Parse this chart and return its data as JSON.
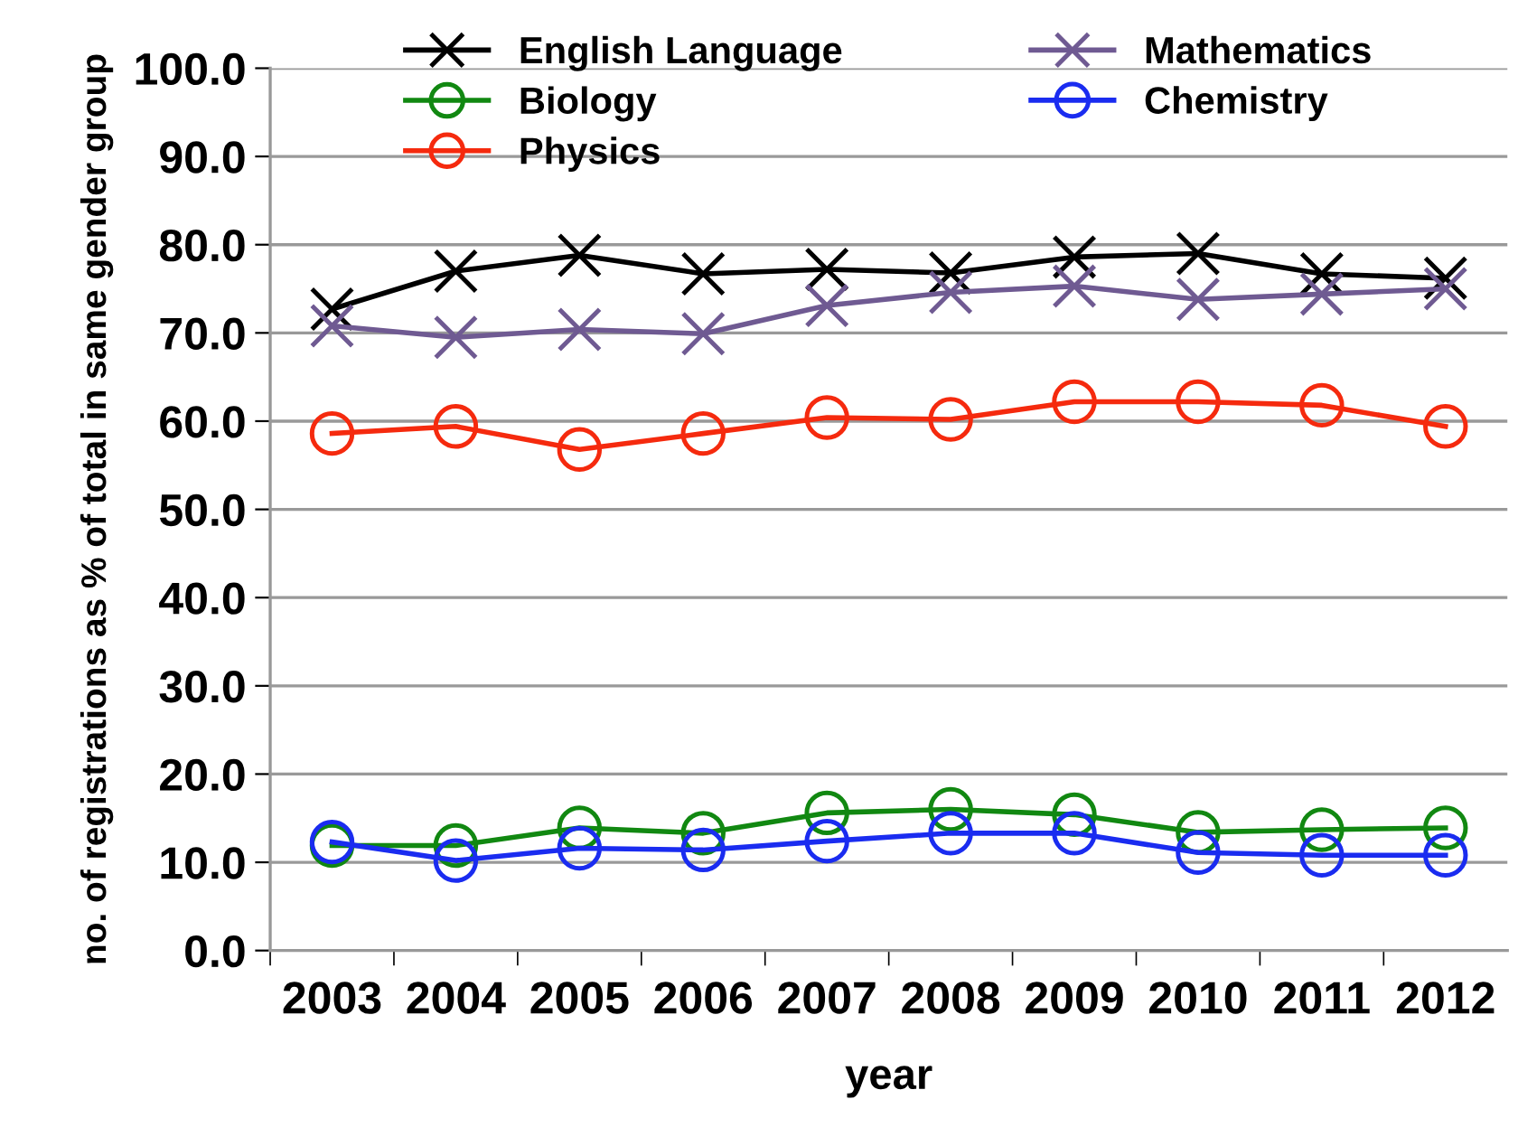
{
  "chart_data": {
    "type": "line",
    "xlabel": "year",
    "ylabel": "no. of registrations as % of total in same gender group",
    "categories": [
      "2003",
      "2004",
      "2005",
      "2006",
      "2007",
      "2008",
      "2009",
      "2010",
      "2011",
      "2012"
    ],
    "series": [
      {
        "name": "English Language",
        "color": "#000000",
        "marker": "cross",
        "values": [
          72.7,
          77.0,
          78.8,
          76.7,
          77.2,
          76.8,
          78.6,
          79.0,
          76.7,
          76.2
        ]
      },
      {
        "name": "Mathematics",
        "color": "#6f5a92",
        "marker": "cross",
        "values": [
          70.8,
          69.5,
          70.4,
          69.9,
          73.1,
          74.6,
          75.3,
          73.8,
          74.4,
          75.0
        ]
      },
      {
        "name": "Biology",
        "color": "#118811",
        "marker": "circle",
        "values": [
          11.9,
          11.9,
          13.9,
          13.3,
          15.6,
          16.0,
          15.4,
          13.4,
          13.7,
          13.9
        ]
      },
      {
        "name": "Chemistry",
        "color": "#1a2cf0",
        "marker": "circle",
        "values": [
          12.3,
          10.2,
          11.6,
          11.4,
          12.4,
          13.3,
          13.3,
          11.1,
          10.8,
          10.8
        ]
      },
      {
        "name": "Physics",
        "color": "#f52a0e",
        "marker": "circle",
        "values": [
          58.6,
          59.4,
          56.8,
          58.6,
          60.4,
          60.2,
          62.2,
          62.2,
          61.8,
          59.4
        ]
      }
    ],
    "ylim": [
      0,
      100
    ],
    "yticks": [
      {
        "value": 0,
        "label": "0.0"
      },
      {
        "value": 10,
        "label": "10.0"
      },
      {
        "value": 20,
        "label": "20.0"
      },
      {
        "value": 30,
        "label": "30.0"
      },
      {
        "value": 40,
        "label": "40.0"
      },
      {
        "value": 50,
        "label": "50.0"
      },
      {
        "value": 60,
        "label": "60.0"
      },
      {
        "value": 70,
        "label": "70.0"
      },
      {
        "value": 80,
        "label": "80.0"
      },
      {
        "value": 90,
        "label": "90.0"
      },
      {
        "value": 100,
        "label": "100.0"
      }
    ],
    "grid": "y",
    "legend": "top",
    "line_style": "solid"
  }
}
